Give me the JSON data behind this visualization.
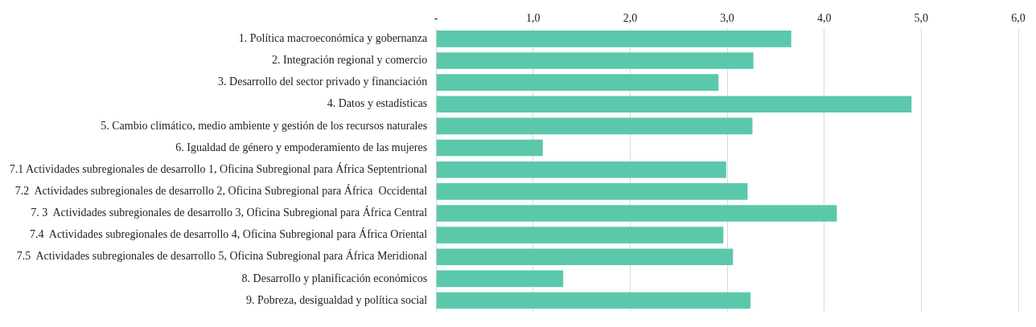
{
  "chart_data": {
    "type": "bar",
    "orientation": "horizontal",
    "categories": [
      "1. Política macroeconómica y gobernanza",
      "2. Integración regional y comercio",
      "3. Desarrollo del sector privado y financiación",
      "4. Datos y estadísticas",
      "5. Cambio climático, medio ambiente y gestión de los recursos naturales",
      "6. Igualdad de género y empoderamiento de las mujeres",
      "7.1 Actividades subregionales de desarrollo 1, Oficina Subregional para África Septentrional",
      "7.2  Actividades subregionales de desarrollo 2, Oficina Subregional para África  Occidental",
      "7. 3  Actividades subregionales de desarrollo 3, Oficina Subregional para África Central",
      "7.4  Actividades subregionales de desarrollo 4, Oficina Subregional para África Oriental",
      "7.5  Actividades subregionales de desarrollo 5, Oficina Subregional para África Meridional",
      "8. Desarrollo y planificación económicos",
      "9. Pobreza, desigualdad y política social"
    ],
    "values": [
      3.66,
      3.27,
      2.91,
      4.9,
      3.26,
      1.1,
      2.99,
      3.21,
      4.13,
      2.96,
      3.06,
      1.31,
      3.24
    ],
    "color": "#5bc8ab",
    "xlim": [
      0,
      6
    ],
    "xticks": [
      {
        "value": 0,
        "label": "-"
      },
      {
        "value": 1,
        "label": "1,0"
      },
      {
        "value": 2,
        "label": "2,0"
      },
      {
        "value": 3,
        "label": "3,0"
      },
      {
        "value": 4,
        "label": "4,0"
      },
      {
        "value": 5,
        "label": "5,0"
      },
      {
        "value": 6,
        "label": "6,0"
      }
    ],
    "grid": "x",
    "legend": false
  }
}
